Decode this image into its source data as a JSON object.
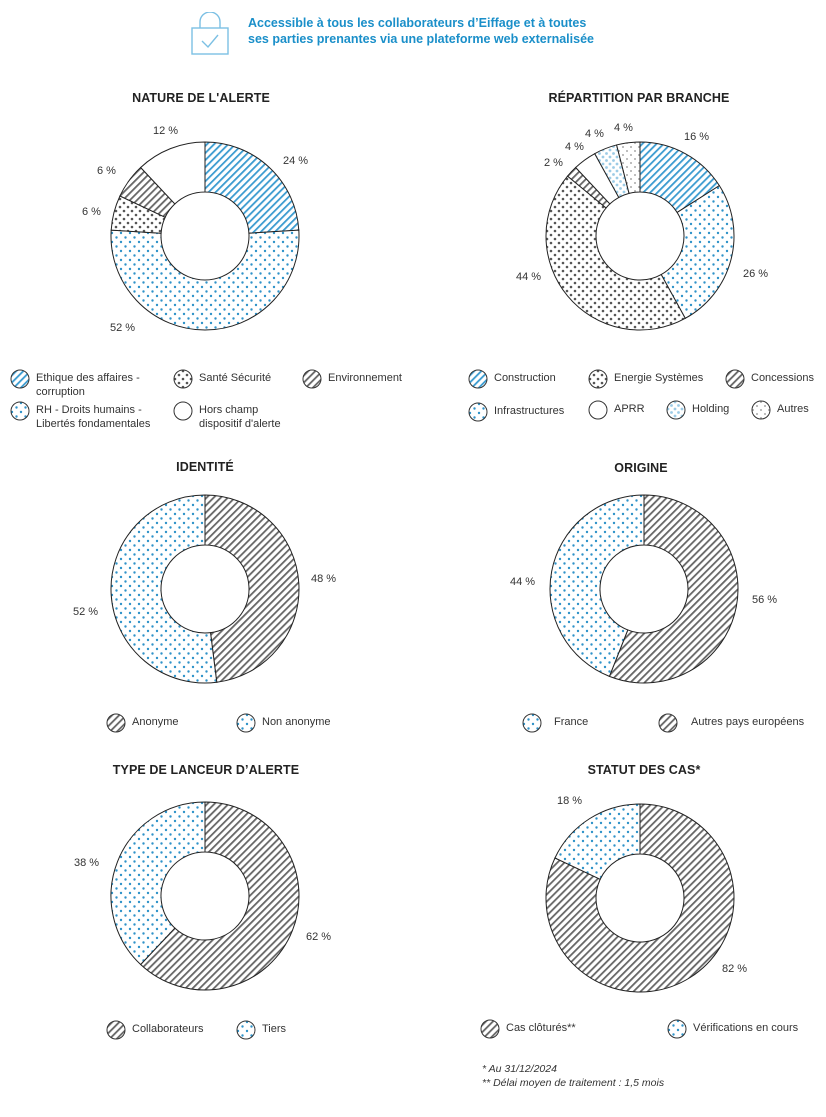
{
  "header": {
    "line1": "Accessible à tous les collaborateurs d’Eiffage et à toutes",
    "line2": "ses parties prenantes via une plateforme web externalisée"
  },
  "colors": {
    "accent": "#1a8fc9",
    "gray": "#555555"
  },
  "footnote": {
    "line1": "* Au 31/12/2024",
    "line2": "** Délai moyen de traitement : 1,5 mois"
  },
  "chart_data": [
    {
      "type": "pie",
      "title": "NATURE DE L'ALERTE",
      "slices": [
        {
          "label": "Ethique des affaires - corruption",
          "value": 24,
          "pattern": "blue-hatch",
          "pct_label": "24 %"
        },
        {
          "label": "RH - Droits humains - Libertés fondamentales",
          "value": 52,
          "pattern": "blue-dots",
          "pct_label": "52 %"
        },
        {
          "label": "Santé Sécurité",
          "value": 6,
          "pattern": "gray-dots",
          "pct_label": "6 %"
        },
        {
          "label": "Environnement",
          "value": 6,
          "pattern": "gray-hatch",
          "pct_label": "6 %"
        },
        {
          "label": "Hors champ dispositif d'alerte",
          "value": 12,
          "pattern": "white",
          "pct_label": "12 %"
        }
      ]
    },
    {
      "type": "pie",
      "title": "RÉPARTITION PAR BRANCHE",
      "slices": [
        {
          "label": "Construction",
          "value": 16,
          "pattern": "blue-hatch",
          "pct_label": "16 %"
        },
        {
          "label": "Infrastructures",
          "value": 26,
          "pattern": "blue-dots",
          "pct_label": "26 %"
        },
        {
          "label": "Energie Systèmes",
          "value": 44,
          "pattern": "gray-dots",
          "pct_label": "44 %"
        },
        {
          "label": "Concessions",
          "value": 2,
          "pattern": "gray-hatch",
          "pct_label": "2 %"
        },
        {
          "label": "APRR",
          "value": 4,
          "pattern": "white",
          "pct_label": "4 %"
        },
        {
          "label": "Holding",
          "value": 4,
          "pattern": "blue-sparse",
          "pct_label": "4 %"
        },
        {
          "label": "Autres",
          "value": 4,
          "pattern": "gray-sparse",
          "pct_label": "4 %"
        }
      ]
    },
    {
      "type": "pie",
      "title": "IDENTITÉ",
      "slices": [
        {
          "label": "Anonyme",
          "value": 48,
          "pattern": "gray-hatch",
          "pct_label": "48 %"
        },
        {
          "label": "Non anonyme",
          "value": 52,
          "pattern": "blue-dots",
          "pct_label": "52 %"
        }
      ]
    },
    {
      "type": "pie",
      "title": "ORIGINE",
      "slices": [
        {
          "label": "Autres pays européens",
          "value": 56,
          "pattern": "gray-hatch",
          "pct_label": "56 %"
        },
        {
          "label": "France",
          "value": 44,
          "pattern": "blue-dots",
          "pct_label": "44 %"
        }
      ]
    },
    {
      "type": "pie",
      "title": "TYPE DE LANCEUR D’ALERTE",
      "slices": [
        {
          "label": "Collaborateurs",
          "value": 62,
          "pattern": "gray-hatch",
          "pct_label": "62 %"
        },
        {
          "label": "Tiers",
          "value": 38,
          "pattern": "blue-dots",
          "pct_label": "38 %"
        }
      ]
    },
    {
      "type": "pie",
      "title": "STATUT DES CAS*",
      "slices": [
        {
          "label": "Cas clôturés**",
          "value": 82,
          "pattern": "gray-hatch",
          "pct_label": "82 %"
        },
        {
          "label": "Vérifications en cours",
          "value": 18,
          "pattern": "blue-dots",
          "pct_label": "18 %"
        }
      ]
    }
  ]
}
